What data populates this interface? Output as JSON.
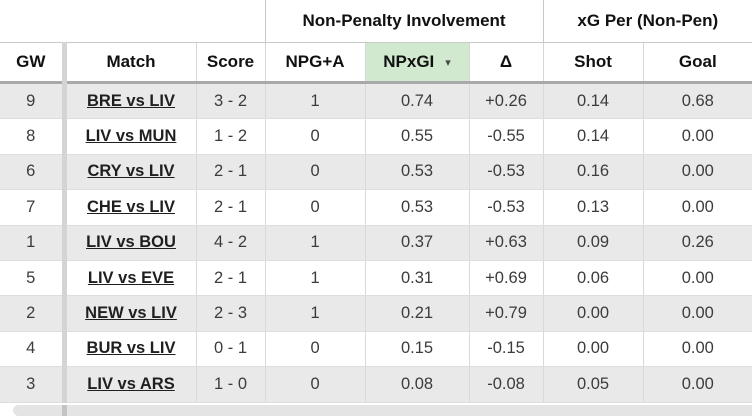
{
  "table": {
    "group_headers": [
      {
        "label": "",
        "span": 3
      },
      {
        "label": "Non-Penalty Involvement",
        "span": 3
      },
      {
        "label": "xG Per (Non-Pen)",
        "span": 2
      }
    ],
    "columns": [
      {
        "key": "gw",
        "label": "GW"
      },
      {
        "key": "match",
        "label": "Match"
      },
      {
        "key": "score",
        "label": "Score"
      },
      {
        "key": "npga",
        "label": "NPG+A"
      },
      {
        "key": "npxgi",
        "label": "NPxGI",
        "sorted": "desc"
      },
      {
        "key": "delta",
        "label": "Δ"
      },
      {
        "key": "shot",
        "label": "Shot"
      },
      {
        "key": "goal",
        "label": "Goal"
      }
    ],
    "sort_icon": "▾",
    "rows": [
      {
        "gw": "9",
        "match": "BRE vs LIV",
        "score": "3 - 2",
        "npga": "1",
        "npxgi": "0.74",
        "delta": "+0.26",
        "shot": "0.14",
        "goal": "0.68"
      },
      {
        "gw": "8",
        "match": "LIV vs MUN",
        "score": "1 - 2",
        "npga": "0",
        "npxgi": "0.55",
        "delta": "-0.55",
        "shot": "0.14",
        "goal": "0.00"
      },
      {
        "gw": "6",
        "match": "CRY vs LIV",
        "score": "2 - 1",
        "npga": "0",
        "npxgi": "0.53",
        "delta": "-0.53",
        "shot": "0.16",
        "goal": "0.00"
      },
      {
        "gw": "7",
        "match": "CHE vs LIV",
        "score": "2 - 1",
        "npga": "0",
        "npxgi": "0.53",
        "delta": "-0.53",
        "shot": "0.13",
        "goal": "0.00"
      },
      {
        "gw": "1",
        "match": "LIV vs BOU",
        "score": "4 - 2",
        "npga": "1",
        "npxgi": "0.37",
        "delta": "+0.63",
        "shot": "0.09",
        "goal": "0.26"
      },
      {
        "gw": "5",
        "match": "LIV vs EVE",
        "score": "2 - 1",
        "npga": "1",
        "npxgi": "0.31",
        "delta": "+0.69",
        "shot": "0.06",
        "goal": "0.00"
      },
      {
        "gw": "2",
        "match": "NEW vs LIV",
        "score": "2 - 3",
        "npga": "1",
        "npxgi": "0.21",
        "delta": "+0.79",
        "shot": "0.00",
        "goal": "0.00"
      },
      {
        "gw": "4",
        "match": "BUR vs LIV",
        "score": "0 - 1",
        "npga": "0",
        "npxgi": "0.15",
        "delta": "-0.15",
        "shot": "0.00",
        "goal": "0.00"
      },
      {
        "gw": "3",
        "match": "LIV vs ARS",
        "score": "1 - 0",
        "npga": "0",
        "npxgi": "0.08",
        "delta": "-0.08",
        "shot": "0.05",
        "goal": "0.00"
      }
    ]
  },
  "colors": {
    "sorted_column_header_bg": "#d1e9cf",
    "row_stripe": "#e9e9e9",
    "frozen_column_divider": "#d4d4d4",
    "header_underline": "#a9a9a9",
    "cell_border": "#d9d9d9",
    "text_data": "#3c3c3c",
    "text_header": "#111111"
  }
}
